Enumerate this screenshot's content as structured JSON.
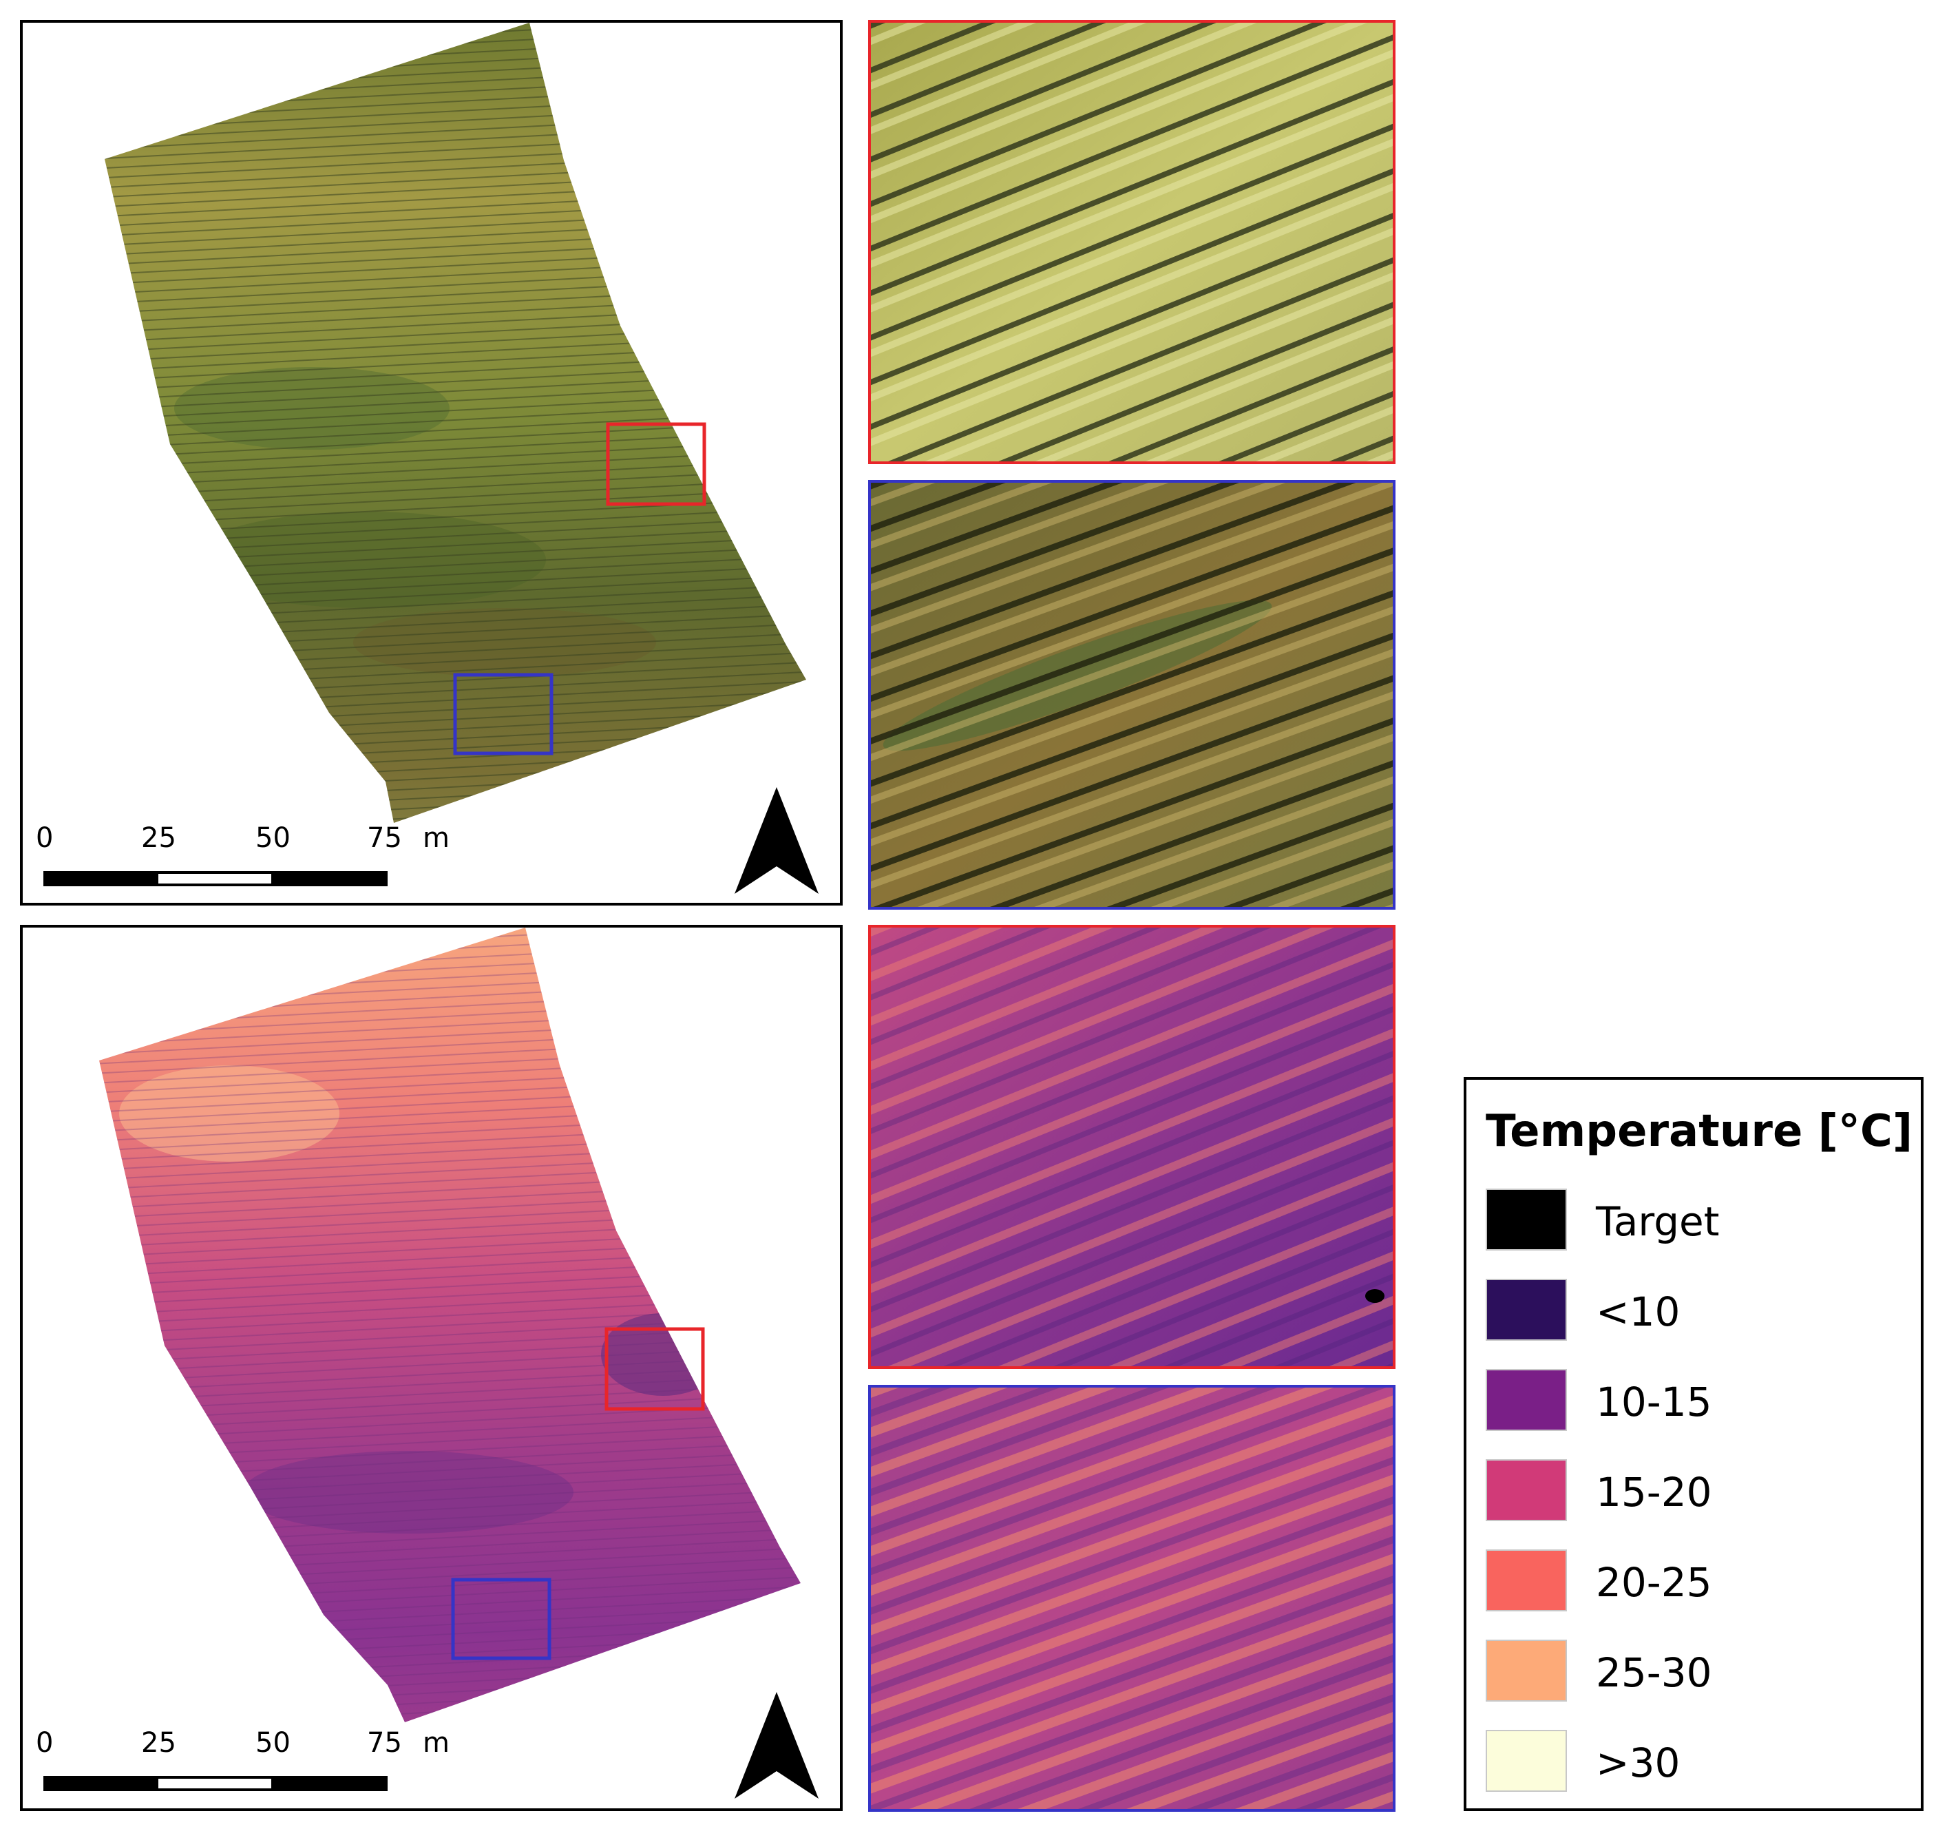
{
  "panels": {
    "rgb": {
      "scale_bar": {
        "ticks": [
          "0",
          "25",
          "50",
          "75"
        ],
        "unit": "m"
      },
      "north_arrow": "north-arrow-icon",
      "highlight_boxes": [
        {
          "color": "#e8252a"
        },
        {
          "color": "#3534c7"
        }
      ],
      "palette": {
        "field_light": "#a8a040",
        "field_dark": "#5a6a2c",
        "row_line": "#3c4220"
      }
    },
    "thermal": {
      "scale_bar": {
        "ticks": [
          "0",
          "25",
          "50",
          "75"
        ],
        "unit": "m"
      },
      "north_arrow": "north-arrow-icon",
      "highlight_boxes": [
        {
          "color": "#e8252a"
        },
        {
          "color": "#3534c7"
        }
      ],
      "palette": {
        "top": "#f6977a",
        "mid": "#c2437a",
        "bottom": "#7a2f93"
      }
    }
  },
  "insets": [
    {
      "source": "rgb",
      "frame_color": "#e8252a",
      "palette": [
        "#c8c870",
        "#8a8a40",
        "#e4e49a"
      ]
    },
    {
      "source": "rgb",
      "frame_color": "#3534c7",
      "palette": [
        "#8a7a3a",
        "#4e5a28",
        "#c0b060"
      ]
    },
    {
      "source": "thermal",
      "frame_color": "#e8252a",
      "palette": [
        "#9c3a8f",
        "#6b2a90",
        "#d9577a"
      ]
    },
    {
      "source": "thermal",
      "frame_color": "#3534c7",
      "palette": [
        "#b0428a",
        "#7a2f93",
        "#ef7a6a"
      ]
    }
  ],
  "legend": {
    "title": "Temperature [°C]",
    "entries": [
      {
        "label": "Target",
        "color": "#000000"
      },
      {
        "label": "<10",
        "color": "#2c0f5c"
      },
      {
        "label": "10-15",
        "color": "#7a1f87"
      },
      {
        "label": "15-20",
        "color": "#d13a78"
      },
      {
        "label": "20-25",
        "color": "#f9645e"
      },
      {
        "label": "25-30",
        "color": "#fdaa78"
      },
      {
        "label": ">30",
        "color": "#fcfddb"
      }
    ]
  }
}
